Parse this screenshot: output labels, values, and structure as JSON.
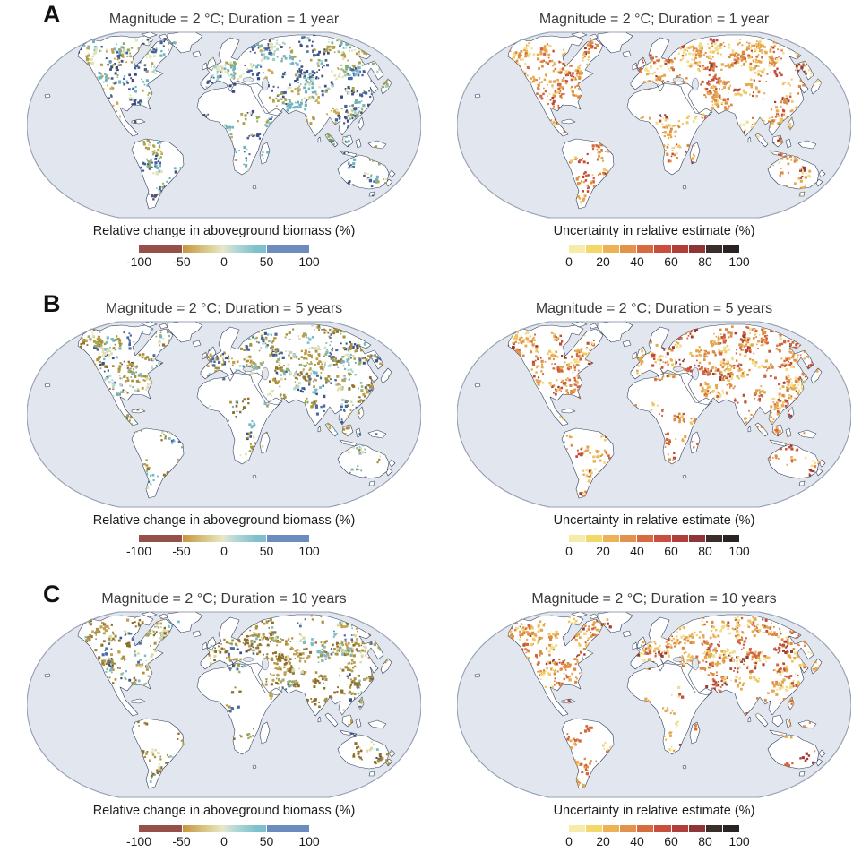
{
  "figure": {
    "rows": [
      {
        "label": "A",
        "left": {
          "title": "Magnitude = 2 °C; Duration = 1 year",
          "caption": "Relative change in aboveground biomass (%)",
          "colorbar": "biomass",
          "map": "biomass_1yr"
        },
        "right": {
          "title": "Magnitude = 2 °C; Duration = 1 year",
          "caption": "Uncertainty in relative estimate (%)",
          "colorbar": "uncertainty",
          "map": "uncertainty_1yr"
        }
      },
      {
        "label": "B",
        "left": {
          "title": "Magnitude = 2 °C; Duration = 5 years",
          "caption": "Relative change in aboveground biomass (%)",
          "colorbar": "biomass",
          "map": "biomass_5yr"
        },
        "right": {
          "title": "Magnitude = 2 °C; Duration = 5 years",
          "caption": "Uncertainty in relative estimate (%)",
          "colorbar": "uncertainty",
          "map": "uncertainty_5yr"
        }
      },
      {
        "label": "C",
        "left": {
          "title": "Magnitude = 2 °C; Duration = 10 years",
          "caption": "Relative change in aboveground biomass (%)",
          "colorbar": "biomass",
          "map": "biomass_10yr"
        },
        "right": {
          "title": "Magnitude = 2 °C; Duration = 10 years",
          "caption": "Uncertainty in relative estimate (%)",
          "colorbar": "uncertainty",
          "map": "uncertainty_10yr"
        }
      }
    ]
  },
  "colorbars": {
    "biomass": {
      "ticks": [
        "-100",
        "-50",
        "0",
        "50",
        "100"
      ],
      "tick_fracs": [
        0,
        25,
        50,
        75,
        100
      ],
      "left_block": "#96504a",
      "right_block": "#6d8cbe",
      "gradient": [
        "#c6953e",
        "#d9cd8d",
        "#e8e7c8",
        "#b7dad6",
        "#7fc0cd"
      ]
    },
    "uncertainty": {
      "ticks": [
        "0",
        "20",
        "40",
        "60",
        "80",
        "100"
      ],
      "tick_fracs": [
        0,
        20,
        40,
        60,
        80,
        100
      ],
      "segments": [
        "#f6eba8",
        "#f2d868",
        "#ecb254",
        "#e2924b",
        "#d86a40",
        "#c94e3e",
        "#b03f3b",
        "#8f3536",
        "#3a2e2a",
        "#292423"
      ]
    }
  },
  "map_style": {
    "ocean": "#e2e6ee",
    "land": "#ffffff",
    "coast": "#31405c",
    "outline": "#97a2b4"
  },
  "zones": [
    [
      44,
      10,
      36,
      22
    ],
    [
      62,
      18,
      48,
      38
    ],
    [
      112,
      12,
      52,
      44
    ],
    [
      80,
      52,
      58,
      34
    ],
    [
      96,
      84,
      28,
      34
    ],
    [
      118,
      124,
      58,
      28
    ],
    [
      126,
      152,
      48,
      48
    ],
    [
      196,
      28,
      50,
      38
    ],
    [
      246,
      12,
      62,
      46
    ],
    [
      308,
      6,
      110,
      48
    ],
    [
      268,
      52,
      72,
      36
    ],
    [
      348,
      58,
      62,
      52
    ],
    [
      303,
      90,
      38,
      32
    ],
    [
      333,
      98,
      34,
      38
    ],
    [
      333,
      117,
      72,
      24
    ],
    [
      194,
      92,
      90,
      30
    ],
    [
      224,
      128,
      34,
      36
    ],
    [
      347,
      141,
      60,
      44
    ],
    [
      259,
      127,
      13,
      25
    ]
  ],
  "maps": {
    "biomass_1yr": {
      "palette": [
        [
          "#6fb3c0",
          18
        ],
        [
          "#a6d0c6",
          9
        ],
        [
          "#46629e",
          16
        ],
        [
          "#3b4d80",
          12
        ],
        [
          "#afa04c",
          15
        ],
        [
          "#c9a850",
          9
        ],
        [
          "#dfe3b6",
          12
        ],
        [
          "#584a70",
          4
        ],
        [
          "#8fae62",
          5
        ]
      ],
      "density": [
        0.7,
        0.75,
        0.8,
        0.7,
        0.35,
        0.45,
        0.5,
        0.7,
        0.8,
        0.85,
        0.7,
        1.0,
        0.45,
        0.5,
        0.3,
        0.55,
        0.4,
        0.3,
        0.35
      ]
    },
    "biomass_5yr": {
      "palette": [
        [
          "#a8923f",
          22
        ],
        [
          "#c09c44",
          12
        ],
        [
          "#8f7330",
          10
        ],
        [
          "#74b9c3",
          14
        ],
        [
          "#b7d8cf",
          7
        ],
        [
          "#49699f",
          11
        ],
        [
          "#e0ddae",
          12
        ],
        [
          "#3b5384",
          6
        ],
        [
          "#96b06a",
          6
        ]
      ],
      "density": [
        0.7,
        0.8,
        0.8,
        0.7,
        0.3,
        0.3,
        0.5,
        0.75,
        0.85,
        0.85,
        0.75,
        0.85,
        0.35,
        0.4,
        0.25,
        0.4,
        0.35,
        0.3,
        0.3
      ]
    },
    "biomass_10yr": {
      "palette": [
        [
          "#8f6f2c",
          26
        ],
        [
          "#a8923f",
          22
        ],
        [
          "#c0a050",
          12
        ],
        [
          "#7cbcc4",
          11
        ],
        [
          "#4c6ca3",
          9
        ],
        [
          "#dcd9a8",
          12
        ],
        [
          "#3b5384",
          4
        ],
        [
          "#9eb070",
          4
        ]
      ],
      "density": [
        0.65,
        0.8,
        0.8,
        0.65,
        0.2,
        0.15,
        0.5,
        0.8,
        0.9,
        0.85,
        0.75,
        0.7,
        0.2,
        0.25,
        0.15,
        0.15,
        0.3,
        0.25,
        0.2
      ]
    },
    "uncertainty_1yr": {
      "palette": [
        [
          "#f2dd8a",
          15
        ],
        [
          "#eec763",
          14
        ],
        [
          "#e5a84e",
          22
        ],
        [
          "#dd8a43",
          20
        ],
        [
          "#d2653c",
          14
        ],
        [
          "#c04b3a",
          9
        ],
        [
          "#9c3a34",
          6
        ]
      ],
      "density": [
        0.75,
        0.85,
        0.85,
        0.8,
        0.45,
        0.45,
        0.55,
        0.8,
        0.9,
        0.9,
        0.75,
        0.9,
        0.4,
        0.5,
        0.35,
        0.5,
        0.45,
        0.35,
        0.45
      ]
    },
    "uncertainty_5yr": {
      "palette": [
        [
          "#f2dd8a",
          15
        ],
        [
          "#eec763",
          14
        ],
        [
          "#e5a84e",
          22
        ],
        [
          "#dd8a43",
          20
        ],
        [
          "#d2653c",
          14
        ],
        [
          "#c04b3a",
          9
        ],
        [
          "#9c3a34",
          6
        ]
      ],
      "density": [
        0.75,
        0.85,
        0.85,
        0.8,
        0.4,
        0.35,
        0.6,
        0.8,
        0.9,
        0.9,
        0.8,
        0.85,
        0.3,
        0.4,
        0.3,
        0.4,
        0.4,
        0.3,
        0.4
      ]
    },
    "uncertainty_10yr": {
      "palette": [
        [
          "#f2dd8a",
          15
        ],
        [
          "#eec763",
          14
        ],
        [
          "#e5a84e",
          22
        ],
        [
          "#dd8a43",
          20
        ],
        [
          "#d2653c",
          14
        ],
        [
          "#c04b3a",
          9
        ],
        [
          "#9c3a34",
          6
        ]
      ],
      "density": [
        0.7,
        0.85,
        0.85,
        0.75,
        0.3,
        0.2,
        0.6,
        0.8,
        0.9,
        0.9,
        0.8,
        0.75,
        0.2,
        0.25,
        0.2,
        0.2,
        0.35,
        0.25,
        0.35
      ]
    }
  }
}
